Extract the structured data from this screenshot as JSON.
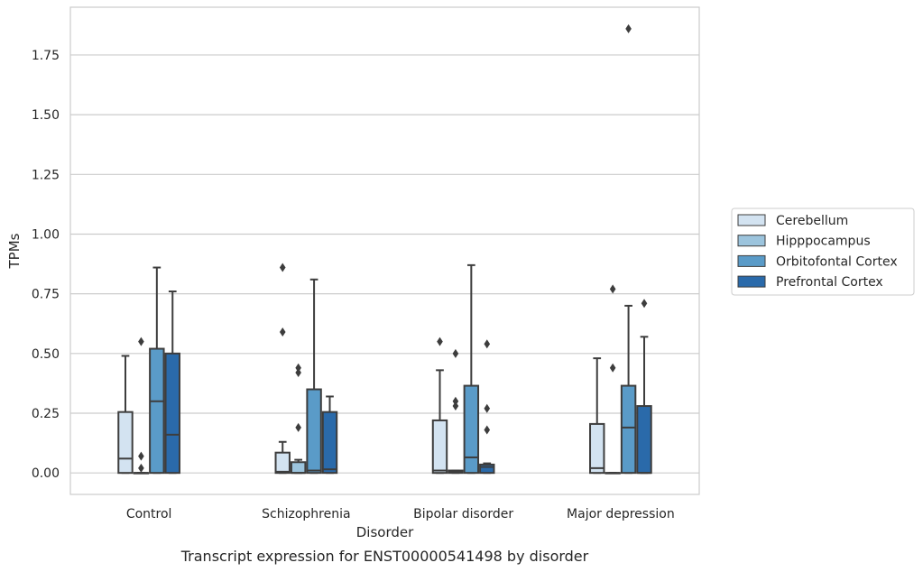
{
  "chart_data": {
    "type": "box",
    "caption": "Transcript expression for ENST00000541498 by disorder",
    "xlabel": "Disorder",
    "ylabel": "TPMs",
    "ylim": [
      -0.09,
      1.95
    ],
    "yticks": [
      "0.00",
      "0.25",
      "0.50",
      "0.75",
      "1.00",
      "1.25",
      "1.50",
      "1.75"
    ],
    "categories": [
      "Control",
      "Schizophrenia",
      "Bipolar disorder",
      "Major depression"
    ],
    "grid": true,
    "legend_position": "right",
    "series": [
      {
        "name": "Cerebellum",
        "color": "#d3e3f1",
        "boxes": [
          {
            "whislo": 0.0,
            "q1": 0.0,
            "med": 0.06,
            "q3": 0.255,
            "whishi": 0.49,
            "fliers": []
          },
          {
            "whislo": 0.0,
            "q1": 0.0,
            "med": 0.005,
            "q3": 0.085,
            "whishi": 0.13,
            "fliers": [
              0.59,
              0.86
            ]
          },
          {
            "whislo": 0.0,
            "q1": 0.0,
            "med": 0.01,
            "q3": 0.22,
            "whishi": 0.43,
            "fliers": [
              0.55
            ]
          },
          {
            "whislo": 0.0,
            "q1": 0.0,
            "med": 0.02,
            "q3": 0.205,
            "whishi": 0.48,
            "fliers": []
          }
        ]
      },
      {
        "name": "Hipppocampus",
        "color": "#9cc4dd",
        "boxes": [
          {
            "whislo": 0.0,
            "q1": 0.0,
            "med": 0.0,
            "q3": 0.0,
            "whishi": 0.0,
            "fliers": [
              0.02,
              0.07,
              0.55
            ]
          },
          {
            "whislo": 0.0,
            "q1": 0.0,
            "med": 0.0,
            "q3": 0.045,
            "whishi": 0.055,
            "fliers": [
              0.19,
              0.42,
              0.44
            ]
          },
          {
            "whislo": 0.0,
            "q1": 0.0,
            "med": 0.005,
            "q3": 0.01,
            "whishi": 0.01,
            "fliers": [
              0.28,
              0.3,
              0.5
            ]
          },
          {
            "whislo": 0.0,
            "q1": 0.0,
            "med": 0.0,
            "q3": 0.0,
            "whishi": 0.0,
            "fliers": [
              0.44,
              0.77
            ]
          }
        ]
      },
      {
        "name": "Orbitofontal Cortex",
        "color": "#5a9bc8",
        "boxes": [
          {
            "whislo": 0.0,
            "q1": 0.0,
            "med": 0.3,
            "q3": 0.52,
            "whishi": 0.86,
            "fliers": []
          },
          {
            "whislo": 0.0,
            "q1": 0.0,
            "med": 0.01,
            "q3": 0.35,
            "whishi": 0.81,
            "fliers": []
          },
          {
            "whislo": 0.0,
            "q1": 0.0,
            "med": 0.065,
            "q3": 0.365,
            "whishi": 0.87,
            "fliers": []
          },
          {
            "whislo": 0.0,
            "q1": 0.0,
            "med": 0.19,
            "q3": 0.365,
            "whishi": 0.7,
            "fliers": [
              1.86
            ]
          }
        ]
      },
      {
        "name": "Prefrontal Cortex",
        "color": "#2a6aaa",
        "boxes": [
          {
            "whislo": 0.0,
            "q1": 0.0,
            "med": 0.16,
            "q3": 0.5,
            "whishi": 0.76,
            "fliers": []
          },
          {
            "whislo": 0.0,
            "q1": 0.0,
            "med": 0.015,
            "q3": 0.255,
            "whishi": 0.32,
            "fliers": []
          },
          {
            "whislo": 0.0,
            "q1": 0.0,
            "med": 0.025,
            "q3": 0.035,
            "whishi": 0.04,
            "fliers": [
              0.18,
              0.27,
              0.54
            ]
          },
          {
            "whislo": 0.0,
            "q1": 0.0,
            "med": 0.0,
            "q3": 0.28,
            "whishi": 0.57,
            "fliers": [
              0.71
            ]
          }
        ]
      }
    ]
  }
}
